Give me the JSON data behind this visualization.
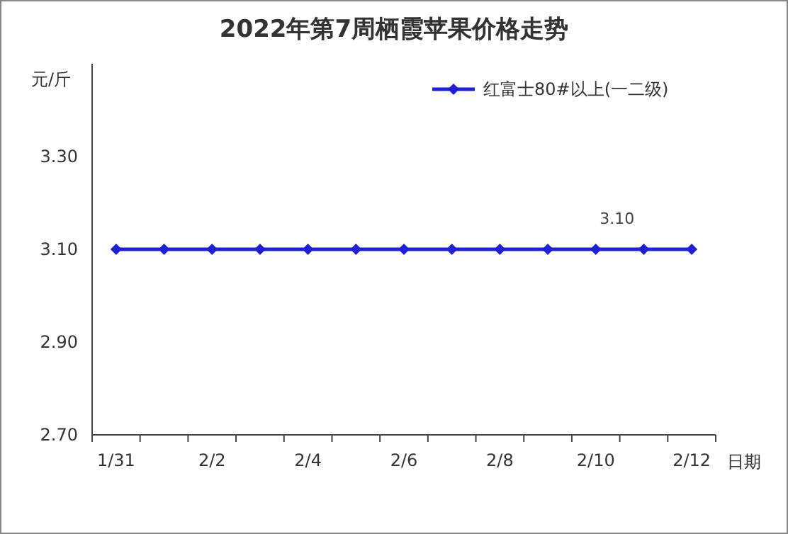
{
  "chart_data": {
    "type": "line",
    "title": "2022年第7周栖霞苹果价格走势",
    "ylabel": "元/斤",
    "xlabel": "日期",
    "categories": [
      "1/31",
      null,
      "2/2",
      null,
      "2/4",
      null,
      "2/6",
      null,
      "2/8",
      null,
      "2/10",
      null,
      "2/12"
    ],
    "series": [
      {
        "name": "红富士80#以上(一二级)",
        "color": "#1f1fd6",
        "values": [
          3.1,
          3.1,
          3.1,
          3.1,
          3.1,
          3.1,
          3.1,
          3.1,
          3.1,
          3.1,
          3.1,
          3.1,
          3.1
        ],
        "value_labels": [
          null,
          null,
          null,
          null,
          null,
          null,
          null,
          null,
          null,
          null,
          "3.10",
          null,
          null
        ]
      }
    ],
    "ylim": [
      2.7,
      3.5
    ],
    "yticks": [
      {
        "value": 2.7,
        "label": "2.70"
      },
      {
        "value": 2.9,
        "label": "2.90"
      },
      {
        "value": 3.1,
        "label": "3.10"
      },
      {
        "value": 3.3,
        "label": "3.30"
      }
    ],
    "grid": false,
    "legend": "top right",
    "marker": "diamond",
    "line_style": "solid"
  }
}
